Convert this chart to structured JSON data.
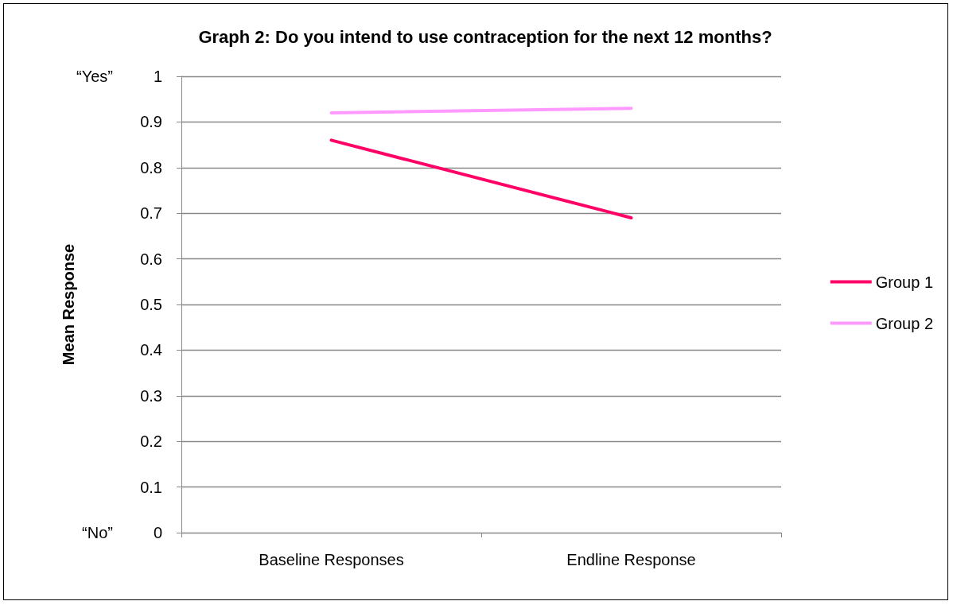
{
  "chart_data": {
    "type": "line",
    "title": "Graph 2: Do you intend to use contraception for the next 12 months?",
    "ylabel": "Mean Response",
    "categories": [
      "Baseline Responses",
      "Endline Response"
    ],
    "series": [
      {
        "name": "Group 1",
        "color": "#ff0066",
        "values": [
          0.86,
          0.69
        ]
      },
      {
        "name": "Group 2",
        "color": "#ff99ff",
        "values": [
          0.92,
          0.93
        ]
      }
    ],
    "ylim": [
      0,
      1
    ],
    "yticks": [
      0,
      0.1,
      0.2,
      0.3,
      0.4,
      0.5,
      0.6,
      0.7,
      0.8,
      0.9,
      1
    ],
    "annotations": [
      "“Yes”",
      "“No”"
    ],
    "grid": "y",
    "legend": "right",
    "marker": "none",
    "line_style": "solid"
  }
}
